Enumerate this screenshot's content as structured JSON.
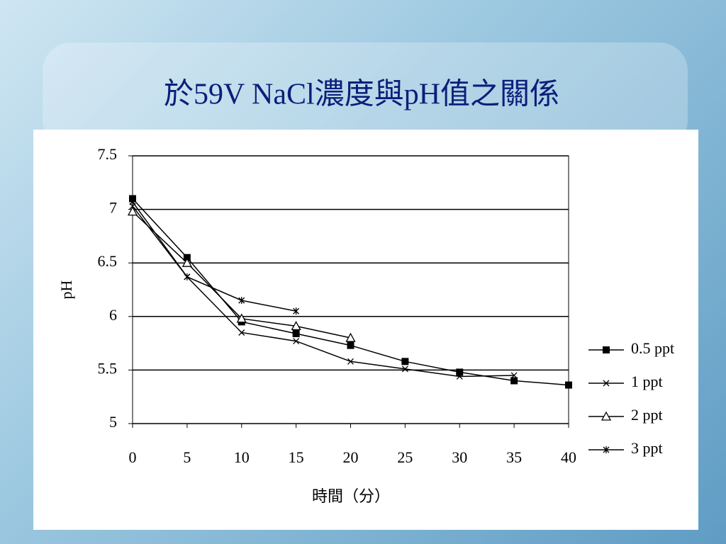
{
  "chart_data": {
    "type": "line",
    "title": "於59V NaCl濃度與pH值之關係",
    "x_label": "時間（分）",
    "y_label": "pH",
    "x": [
      0,
      5,
      10,
      15,
      20,
      25,
      30,
      35,
      40
    ],
    "series": [
      {
        "name": "0.5 ppt",
        "color": "#000000",
        "marker": "square",
        "values": [
          7.1,
          6.55,
          5.95,
          5.84,
          5.73,
          5.58,
          5.48,
          5.4,
          5.36
        ]
      },
      {
        "name": "1 ppt",
        "color": "#000000",
        "marker": "x",
        "values": [
          7.03,
          6.37,
          5.85,
          5.77,
          5.58,
          5.51,
          5.44,
          5.45,
          null
        ]
      },
      {
        "name": "2 ppt",
        "color": "#000000",
        "marker": "triangle",
        "values": [
          6.98,
          6.5,
          5.98,
          5.91,
          5.8,
          null,
          null,
          null,
          null
        ]
      },
      {
        "name": "3 ppt",
        "color": "#000000",
        "marker": "star",
        "values": [
          7.07,
          6.37,
          6.15,
          6.05,
          null,
          null,
          null,
          null,
          null
        ]
      }
    ],
    "xlim": [
      0,
      40
    ],
    "xticks": [
      0,
      5,
      10,
      15,
      20,
      25,
      30,
      35,
      40
    ],
    "ylim": [
      5,
      7.5
    ],
    "yticks": [
      5,
      5.5,
      6,
      6.5,
      7,
      7.5
    ],
    "grid": true,
    "legend": "right"
  }
}
